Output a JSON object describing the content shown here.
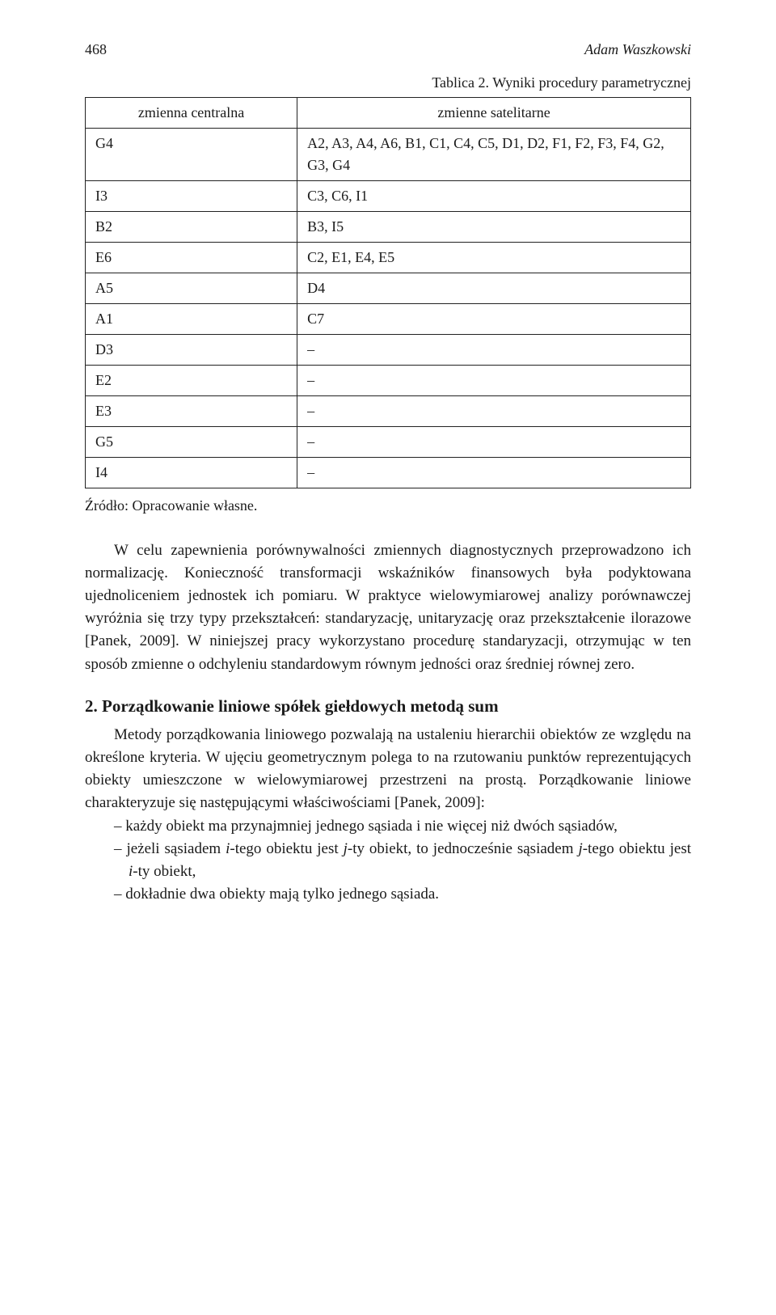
{
  "header": {
    "page_number": "468",
    "author": "Adam Waszkowski"
  },
  "table": {
    "caption": "Tablica 2. Wyniki procedury parametrycznej",
    "columns": [
      "zmienna centralna",
      "zmienne satelitarne"
    ],
    "rows": [
      [
        "G4",
        "A2, A3, A4, A6, B1, C1, C4, C5, D1, D2, F1, F2, F3, F4, G2, G3, G4"
      ],
      [
        "I3",
        "C3, C6, I1"
      ],
      [
        "B2",
        "B3, I5"
      ],
      [
        "E6",
        "C2, E1, E4, E5"
      ],
      [
        "A5",
        "D4"
      ],
      [
        "A1",
        "C7"
      ],
      [
        "D3",
        "–"
      ],
      [
        "E2",
        "–"
      ],
      [
        "E3",
        "–"
      ],
      [
        "G5",
        "–"
      ],
      [
        "I4",
        "–"
      ]
    ],
    "source": "Źródło: Opracowanie własne."
  },
  "paragraph1": "W celu zapewnienia porównywalności zmiennych diagnostycznych przeprowadzono ich normalizację. Konieczność transformacji wskaźników finansowych była podyktowana ujednoliceniem jednostek ich pomiaru. W praktyce wielowymiarowej analizy porównawczej wyróżnia się trzy typy przekształceń: standaryzację, unitaryzację oraz przekształcenie ilorazowe [Panek, 2009]. W niniejszej pracy wykorzystano procedurę standaryzacji, otrzymując w ten sposób zmienne o odchyleniu standardowym równym jedności oraz średniej równej zero.",
  "section2": {
    "heading": "2. Porządkowanie liniowe spółek giełdowych metodą sum",
    "intro": "Metody porządkowania liniowego pozwalają na ustaleniu hierarchii obiektów ze względu na określone kryteria. W ujęciu geometrycznym polega to na rzutowaniu punktów reprezentujących obiekty umieszczone w wielowymiarowej przestrzeni na prostą. Porządkowanie liniowe charakteryzuje się następującymi właściwościami [Panek, 2009]:",
    "bullets": {
      "b1_pre": "każdy obiekt ma przynajmniej jednego sąsiada i nie więcej niż dwóch sąsiadów,",
      "b2_p1": "jeżeli sąsiadem ",
      "b2_i": "i",
      "b2_p2": "-tego obiektu jest ",
      "b2_j": "j",
      "b2_p3": "-ty obiekt, to jednocześnie sąsiadem ",
      "b2_j2": "j",
      "b2_p4": "-tego obiektu jest ",
      "b2_i2": "i",
      "b2_p5": "-ty obiekt,",
      "b3": "dokładnie dwa obiekty mają tylko jednego sąsiada."
    }
  }
}
